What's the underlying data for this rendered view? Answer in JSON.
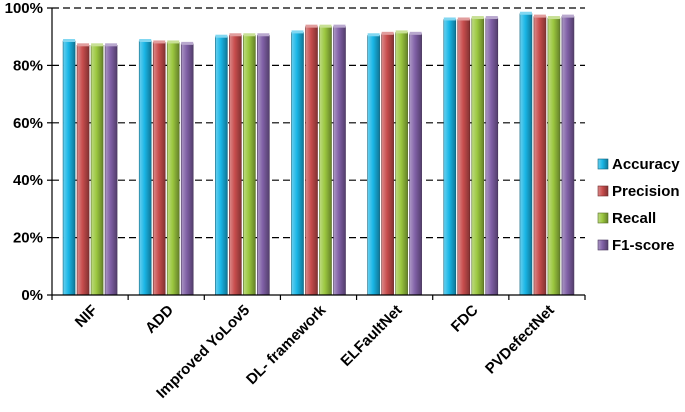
{
  "chart_data": {
    "type": "bar",
    "title": "",
    "xlabel": "",
    "ylabel": "",
    "categories": [
      "NIF",
      "ADD",
      "Improved YoLov5",
      "DL- framework",
      "ELFaultNet",
      "FDC",
      "PVDefectNet"
    ],
    "series": [
      {
        "name": "Accuracy",
        "color": "#19b6e6",
        "values": [
          88.5,
          88.5,
          90.0,
          91.5,
          90.5,
          96.0,
          98.0
        ]
      },
      {
        "name": "Precision",
        "color": "#c84d4d",
        "values": [
          87.0,
          88.0,
          90.5,
          93.5,
          91.0,
          96.0,
          97.0
        ]
      },
      {
        "name": "Recall",
        "color": "#9bc73f",
        "values": [
          87.0,
          88.0,
          90.5,
          93.5,
          91.5,
          96.5,
          96.5
        ]
      },
      {
        "name": "F1-score",
        "color": "#8060a6",
        "values": [
          87.0,
          87.5,
          90.5,
          93.5,
          91.0,
          96.5,
          97.0
        ]
      }
    ],
    "ylim": [
      0,
      100
    ],
    "yticks": [
      "0%",
      "20%",
      "40%",
      "60%",
      "80%",
      "100%"
    ],
    "grid": true,
    "legend_position": "right"
  }
}
